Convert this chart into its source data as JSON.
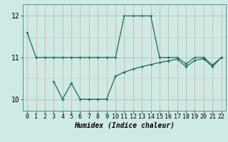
{
  "title": "",
  "xlabel": "Humidex (Indice chaleur)",
  "ylabel": "",
  "bg_color": "#ceeae4",
  "line_color": "#1a6b5a",
  "xlim": [
    -0.5,
    22.5
  ],
  "ylim": [
    9.72,
    12.28
  ],
  "yticks": [
    10,
    11,
    12
  ],
  "xticks": [
    0,
    1,
    2,
    3,
    4,
    5,
    6,
    7,
    8,
    9,
    10,
    11,
    12,
    13,
    14,
    15,
    16,
    17,
    18,
    19,
    20,
    21,
    22
  ],
  "vgrid_color": "#e8a8a8",
  "hgrid_color": "#a8cece",
  "line1_x": [
    0,
    1,
    2,
    3,
    4,
    5,
    6,
    7,
    8,
    9,
    10,
    11,
    12,
    13,
    14,
    15,
    16,
    17,
    18,
    19,
    20,
    21,
    22
  ],
  "line1_y": [
    11.6,
    11.0,
    11.0,
    11.0,
    11.0,
    11.0,
    11.0,
    11.0,
    11.0,
    11.0,
    11.0,
    12.0,
    12.0,
    12.0,
    12.0,
    11.0,
    11.0,
    11.0,
    10.85,
    11.0,
    11.0,
    10.82,
    11.0
  ],
  "line2_x": [
    3,
    4,
    5,
    6,
    7,
    8,
    9,
    10,
    11,
    12,
    13,
    14,
    15,
    16,
    17,
    18,
    19,
    20,
    21,
    22
  ],
  "line2_y": [
    10.42,
    10.0,
    10.38,
    10.0,
    10.0,
    10.0,
    10.0,
    10.55,
    10.65,
    10.72,
    10.78,
    10.83,
    10.88,
    10.92,
    10.96,
    10.78,
    10.93,
    10.97,
    10.78,
    11.0
  ]
}
